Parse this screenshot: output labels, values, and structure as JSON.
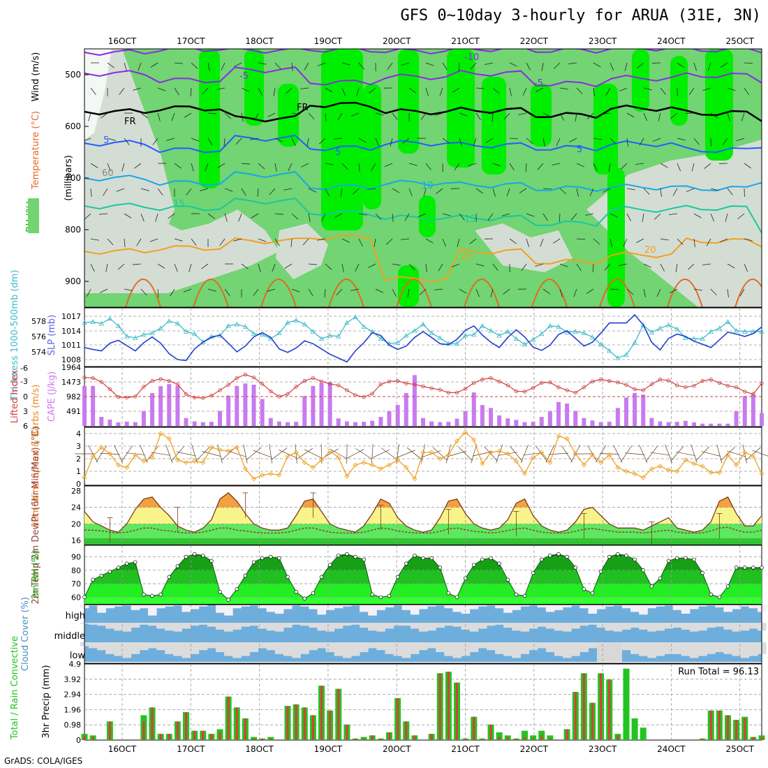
{
  "title": "GFS 0~10day 3-hourly for ARUA (31E, 3N)",
  "footer": "GrADS: COLA/IGES",
  "colors": {
    "bg": "#ffffff",
    "grid": "#999999",
    "rh_light": "#d4ddd4",
    "rh_mid": "#72d472",
    "rh_bright": "#00ee00",
    "temp_purple": "#8a2be2",
    "temp_blue": "#1f5fff",
    "temp_cyan": "#19a7e6",
    "temp_teal": "#19c7a0",
    "temp_orange": "#f0a020",
    "slp_blue": "#1f3fd0",
    "thickness_cyan": "#3cbcc8",
    "cape_purple": "#c87af0",
    "li_red": "#d04040",
    "wind_orange": "#f0a020",
    "cloud_blue": "#6eaedc",
    "cloud_light": "#dcdcdc",
    "precip_green": "#22c422",
    "precip_red": "#e23a3a"
  },
  "x_axis": {
    "top_labels": [
      "16OCT",
      "17OCT",
      "18OCT",
      "19OCT",
      "20OCT",
      "21OCT",
      "22OCT",
      "23OCT",
      "24OCT",
      "25OCT"
    ],
    "bottom_labels": [
      "16OCT",
      "17OCT",
      "18OCT",
      "19OCT",
      "20OCT",
      "21OCT",
      "22OCT",
      "23OCT",
      "24OCT",
      "25OCT"
    ]
  },
  "panels": {
    "upper_air": {
      "ylabel_mb": "(millibars)",
      "ylabel_wind": "Wind (m/s)",
      "ylabel_temp": "Temperature (°C)",
      "ylabel_rh": "RH (%)",
      "yticks": [
        "500",
        "600",
        "700",
        "800",
        "900"
      ],
      "contour_labels": [
        "-10",
        "-5",
        "-5",
        "FR",
        "FR",
        "5",
        "5",
        "5",
        "10",
        "15",
        "15",
        "20",
        "20",
        "60"
      ]
    },
    "slp": {
      "ylabel_left": "Thickness 1000-500mb (dm)",
      "ylabel_right": "SLP (mb)",
      "left_ticks": [
        "578",
        "576",
        "574"
      ],
      "right_ticks": [
        "1017",
        "1014",
        "1011",
        "1008"
      ]
    },
    "cape": {
      "ylabel_left": "Lifted Index",
      "ylabel_right": "CAPE (J/kg)",
      "left_ticks": [
        "-6",
        "-3",
        "0",
        "3",
        "6"
      ],
      "right_ticks": [
        "1964",
        "1473",
        "982",
        "491"
      ]
    },
    "wind10m": {
      "ylabel": "10m Wind Speed & Barbs (m/s)",
      "yticks": [
        "4",
        "3",
        "2",
        "1",
        "0"
      ]
    },
    "temp2m": {
      "ylabel": "2m Temp 2m DewPt (6hr Min/Max) (°C)",
      "yticks": [
        "28",
        "24",
        "20",
        "16"
      ]
    },
    "rh2m": {
      "ylabel": "2m RH (%)",
      "yticks": [
        "90",
        "80",
        "70",
        "60"
      ]
    },
    "cloud": {
      "ylabel": "Cloud Cover (%)",
      "rows": [
        "high",
        "middle",
        "low"
      ]
    },
    "precip": {
      "ylabel_left": "Total / Rain Convective",
      "ylabel_right": "3hr Precip (mm)",
      "yticks": [
        "4.9",
        "3.92",
        "2.94",
        "1.96",
        "0.98",
        "0"
      ],
      "run_total": "Run Total = 96.13"
    }
  },
  "chart_data": {
    "type": "meteogram",
    "time_step_hours": 3,
    "num_steps": 81,
    "slp_mb": [
      1010.5,
      1010.1,
      1009.8,
      1011.4,
      1012.0,
      1010.9,
      1009.8,
      1011.5,
      1012.7,
      1011.4,
      1009.2,
      1008.0,
      1007.8,
      1010.2,
      1011.6,
      1012.6,
      1013.1,
      1011.4,
      1009.6,
      1010.8,
      1012.7,
      1013.6,
      1012.6,
      1010.2,
      1009.5,
      1010.4,
      1011.9,
      1011.3,
      1010.2,
      1009.1,
      1008.3,
      1007.5,
      1009.8,
      1011.5,
      1013.6,
      1013.0,
      1011.0,
      1010.1,
      1010.8,
      1012.6,
      1013.8,
      1012.6,
      1011.3,
      1011.1,
      1012.2,
      1014.1,
      1015.0,
      1013.1,
      1011.6,
      1010.5,
      1012.6,
      1014.2,
      1012.7,
      1010.6,
      1009.9,
      1011.0,
      1013.2,
      1014.0,
      1012.4,
      1010.8,
      1011.6,
      1013.5,
      1015.6,
      1015.6,
      1015.6,
      1017.3,
      1015.2,
      1011.6,
      1010.0,
      1012.4,
      1013.3,
      1012.8,
      1011.8,
      1011.2,
      1010.5,
      1012.1,
      1013.7,
      1013.3,
      1012.8,
      1013.4,
      1014.8
    ],
    "thickness_dm": [
      577.9,
      578.0,
      577.8,
      578.4,
      577.5,
      576.2,
      576.0,
      576.4,
      576.6,
      577.2,
      578.1,
      577.8,
      576.8,
      576.5,
      575.5,
      576.2,
      576.3,
      577.5,
      577.7,
      577.4,
      576.5,
      576.4,
      575.9,
      576.6,
      577.9,
      578.2,
      577.7,
      576.8,
      575.9,
      576.3,
      576.2,
      577.9,
      578.6,
      577.4,
      576.8,
      575.9,
      575.3,
      575.4,
      576.3,
      576.9,
      577.7,
      576.6,
      576.0,
      575.3,
      575.3,
      576.3,
      576.4,
      577.5,
      576.9,
      576.3,
      576.8,
      575.9,
      575.2,
      575.8,
      576.5,
      577.5,
      577.4,
      576.7,
      576.8,
      576.6,
      576.1,
      575.2,
      574.4,
      573.5,
      573.9,
      575.4,
      577.6,
      576.7,
      577.2,
      577.6,
      577.1,
      576.0,
      575.9,
      575.9,
      576.8,
      577.2,
      578.0,
      576.9,
      576.8,
      576.8,
      576.8
    ],
    "cape_jkg": [
      1336,
      1336,
      302,
      211,
      120,
      144,
      125,
      500,
      1100,
      1330,
      1400,
      1336,
      263,
      150,
      126,
      137,
      500,
      1014,
      1336,
      1420,
      1380,
      900,
      264,
      150,
      126,
      137,
      1000,
      1336,
      1430,
      1460,
      250,
      150,
      126,
      137,
      170,
      300,
      500,
      700,
      1100,
      1700,
      263,
      150,
      126,
      137,
      240,
      500,
      1120,
      700,
      600,
      350,
      250,
      200,
      126,
      137,
      300,
      500,
      800,
      750,
      500,
      263,
      180,
      126,
      137,
      600,
      950,
      1100,
      1050,
      263,
      150,
      126,
      137,
      168,
      120,
      75,
      75,
      75,
      75,
      500,
      1000,
      1050,
      432
    ],
    "lifted_index": [
      -3.9,
      -3.8,
      -3.0,
      -1.5,
      0.1,
      0.2,
      0.0,
      -2.0,
      -3.2,
      -3.6,
      -3.2,
      -2.5,
      -0.5,
      0.2,
      0.3,
      -0.2,
      -1.3,
      -2.4,
      -3.8,
      -4.5,
      -3.9,
      -2.6,
      -1.1,
      0.0,
      -0.5,
      -2.0,
      -3.2,
      -3.8,
      -3.1,
      -2.6,
      -2.3,
      -1.3,
      -0.3,
      0.1,
      -0.6,
      -2.5,
      -3.1,
      -3.2,
      -2.7,
      -2.5,
      -2.1,
      -1.7,
      -1.4,
      -0.8,
      -0.8,
      -1.6,
      -2.8,
      -3.5,
      -3.8,
      -3.1,
      -2.3,
      -1.1,
      -1.0,
      -1.8,
      -2.8,
      -2.9,
      -1.9,
      -1.3,
      -0.8,
      -1.9,
      -3.1,
      -3.5,
      -3.2,
      -2.9,
      -2.4,
      -1.5,
      -1.3,
      -2.5,
      -3.5,
      -3.3,
      -2.3,
      -1.9,
      -2.2,
      -3.2,
      -3.5,
      -2.8,
      -2.2,
      -1.9,
      -1.0,
      -0.5,
      -2.7
    ],
    "wind10m_ms": [
      0.5,
      2.2,
      2.9,
      2.4,
      1.5,
      1.3,
      2.3,
      1.8,
      2.1,
      4.0,
      3.6,
      1.9,
      1.7,
      1.8,
      1.7,
      2.9,
      2.7,
      2.6,
      2.9,
      1.2,
      0.4,
      0.7,
      0.8,
      0.7,
      2.2,
      2.5,
      1.7,
      1.3,
      1.9,
      2.6,
      2.1,
      0.6,
      1.5,
      1.7,
      1.5,
      1.2,
      1.5,
      1.9,
      1.3,
      0.4,
      2.5,
      2.5,
      2.0,
      2.3,
      3.4,
      4.1,
      3.5,
      1.6,
      2.5,
      2.6,
      2.4,
      1.8,
      0.8,
      2.1,
      2.5,
      1.7,
      3.8,
      3.6,
      2.4,
      1.5,
      2.3,
      1.7,
      2.3,
      1.3,
      1.0,
      0.8,
      0.5,
      1.2,
      1.4,
      1.1,
      1.0,
      1.9,
      1.6,
      1.4,
      0.9,
      0.9,
      2.3,
      1.5,
      2.5,
      2.2,
      0.8
    ],
    "temp2m_c": [
      23.0,
      20.5,
      19.5,
      18.5,
      18.0,
      20.0,
      23.5,
      26.0,
      26.5,
      24.0,
      22.0,
      19.5,
      18.5,
      18.0,
      19.0,
      21.0,
      26.0,
      27.5,
      25.5,
      22.5,
      20.0,
      19.0,
      18.5,
      18.5,
      19.0,
      22.0,
      25.5,
      26.0,
      23.0,
      20.0,
      19.0,
      18.5,
      18.0,
      19.5,
      22.5,
      26.0,
      25.0,
      21.5,
      19.5,
      18.5,
      18.0,
      18.5,
      21.5,
      25.5,
      26.0,
      22.5,
      20.0,
      19.0,
      18.5,
      19.0,
      21.0,
      25.0,
      26.0,
      22.0,
      19.5,
      18.5,
      18.0,
      18.5,
      20.5,
      23.5,
      24.0,
      22.0,
      20.0,
      19.0,
      19.0,
      19.0,
      18.5,
      19.5,
      20.5,
      21.5,
      19.0,
      18.5,
      18.0,
      18.5,
      20.5,
      25.5,
      26.5,
      22.5,
      19.5,
      19.5,
      22.0
    ],
    "dewpoint2m_c": [
      18.5,
      18.5,
      18.3,
      18.0,
      17.8,
      18.0,
      18.5,
      19.0,
      19.0,
      18.5,
      18.3,
      18.0,
      17.8,
      17.8,
      18.0,
      18.5,
      19.0,
      19.0,
      18.5,
      18.3,
      18.0,
      17.8,
      17.8,
      17.8,
      18.0,
      18.5,
      19.0,
      19.0,
      18.5,
      18.0,
      17.8,
      17.8,
      17.8,
      18.0,
      18.5,
      19.0,
      18.8,
      18.3,
      18.0,
      17.8,
      17.8,
      17.8,
      18.2,
      18.8,
      19.0,
      18.6,
      18.2,
      18.0,
      17.8,
      18.0,
      18.4,
      18.8,
      19.0,
      18.5,
      18.0,
      17.8,
      17.8,
      17.8,
      18.2,
      18.7,
      18.9,
      18.6,
      18.3,
      18.0,
      18.0,
      18.0,
      17.8,
      18.0,
      18.3,
      18.5,
      18.0,
      17.8,
      17.8,
      17.8,
      18.3,
      19.0,
      19.2,
      18.5,
      18.0,
      18.0,
      18.5
    ],
    "rh2m_pct": [
      60,
      73,
      76,
      79,
      82,
      85,
      86,
      62,
      61,
      62,
      75,
      83,
      90,
      92,
      91,
      87,
      64,
      58,
      66,
      76,
      86,
      89,
      90,
      89,
      75,
      64,
      59,
      63,
      75,
      84,
      91,
      92,
      90,
      88,
      62,
      60,
      61,
      75,
      85,
      91,
      89,
      89,
      82,
      63,
      60,
      74,
      84,
      88,
      89,
      85,
      73,
      62,
      61,
      78,
      88,
      91,
      92,
      90,
      82,
      66,
      63,
      79,
      90,
      92,
      91,
      88,
      80,
      68,
      74,
      87,
      89,
      89,
      88,
      78,
      62,
      60,
      68,
      82,
      82,
      82,
      82
    ],
    "precip_total_mm": [
      0.4,
      0.3,
      0.0,
      1.2,
      0.0,
      0.0,
      0.0,
      1.6,
      2.1,
      0.4,
      0.4,
      1.2,
      1.8,
      0.6,
      0.6,
      0.4,
      0.7,
      2.8,
      2.1,
      1.4,
      0.2,
      0.1,
      0.2,
      0.0,
      2.2,
      2.3,
      2.1,
      1.6,
      3.5,
      1.9,
      3.3,
      1.0,
      0.1,
      0.2,
      0.3,
      0.1,
      0.5,
      2.7,
      1.2,
      0.3,
      0.0,
      0.4,
      4.3,
      4.4,
      3.7,
      0.1,
      1.5,
      0.1,
      1.0,
      0.5,
      0.3,
      0.1,
      0.6,
      0.3,
      0.6,
      0.3,
      0.0,
      0.7,
      3.1,
      4.3,
      2.4,
      4.3,
      3.9,
      0.4,
      4.6,
      1.4,
      0.8,
      0.0,
      0.0,
      0.0,
      0.0,
      0.0,
      0.0,
      0.1,
      1.9,
      1.9,
      1.6,
      1.3,
      1.5,
      0.2,
      0.3
    ],
    "precip_conv_mm": [
      0.3,
      0.2,
      0.0,
      1.2,
      0.0,
      0.0,
      0.0,
      1.2,
      2.1,
      0.4,
      0.4,
      1.2,
      1.8,
      0.6,
      0.6,
      0.4,
      0.5,
      2.8,
      2.1,
      1.4,
      0.1,
      0.1,
      0.1,
      0.0,
      2.2,
      2.3,
      2.1,
      1.6,
      3.5,
      1.9,
      3.3,
      1.0,
      0.1,
      0.1,
      0.3,
      0.1,
      0.5,
      2.7,
      1.2,
      0.3,
      0.0,
      0.4,
      4.3,
      4.4,
      3.7,
      0.1,
      1.5,
      0.1,
      1.0,
      0.2,
      0.2,
      0.1,
      0.2,
      0.1,
      0.3,
      0.1,
      0.0,
      0.7,
      3.1,
      4.3,
      2.4,
      4.3,
      3.9,
      0.3,
      0.0,
      0.0,
      0.0,
      0.0,
      0.0,
      0.0,
      0.0,
      0.0,
      0.0,
      0.1,
      1.9,
      1.9,
      1.6,
      1.3,
      1.4,
      0.2,
      0.2
    ],
    "cloud_high_pct": [
      80,
      95,
      55,
      80,
      90,
      95,
      70,
      80,
      40,
      80,
      90,
      95,
      60,
      75,
      90,
      98,
      55,
      40,
      80,
      90,
      95,
      80,
      60,
      50,
      75,
      95,
      90,
      75,
      45,
      70,
      80,
      90,
      95,
      60,
      40,
      70,
      85,
      95,
      70,
      45,
      75,
      90,
      95,
      80,
      60,
      50,
      75,
      90,
      95,
      80,
      55,
      70,
      90,
      95,
      85,
      60,
      70,
      85,
      95,
      80,
      50,
      75,
      90,
      95,
      80,
      60,
      45,
      80,
      90,
      95,
      70,
      50,
      75,
      90,
      95,
      85,
      60,
      75,
      90,
      80,
      60
    ],
    "cloud_mid_pct": [
      95,
      90,
      85,
      70,
      60,
      55,
      75,
      90,
      85,
      70,
      60,
      55,
      70,
      85,
      90,
      80,
      65,
      55,
      65,
      80,
      85,
      70,
      60,
      55,
      75,
      90,
      85,
      75,
      60,
      55,
      70,
      85,
      90,
      75,
      60,
      55,
      70,
      85,
      85,
      70,
      55,
      60,
      75,
      85,
      80,
      65,
      55,
      70,
      85,
      90,
      75,
      60,
      55,
      70,
      80,
      70,
      60,
      55,
      70,
      85,
      90,
      75,
      60,
      55,
      65,
      75,
      65,
      55,
      60,
      70,
      75,
      65,
      55,
      60,
      75,
      80,
      65,
      55,
      60,
      70,
      60
    ],
    "cloud_low_pct": [
      80,
      70,
      60,
      40,
      30,
      20,
      40,
      60,
      70,
      60,
      40,
      30,
      20,
      40,
      60,
      70,
      50,
      30,
      20,
      30,
      50,
      70,
      60,
      40,
      30,
      20,
      40,
      60,
      70,
      50,
      30,
      20,
      30,
      50,
      70,
      60,
      40,
      30,
      20,
      40,
      60,
      70,
      50,
      30,
      20,
      30,
      50,
      70,
      60,
      40,
      30,
      20,
      40,
      60,
      70,
      50,
      30,
      20,
      30,
      50,
      70,
      80,
      80,
      80,
      60,
      40,
      30,
      20,
      30,
      40,
      40,
      30,
      20,
      30,
      40,
      50,
      40,
      30,
      20,
      30,
      40
    ]
  }
}
